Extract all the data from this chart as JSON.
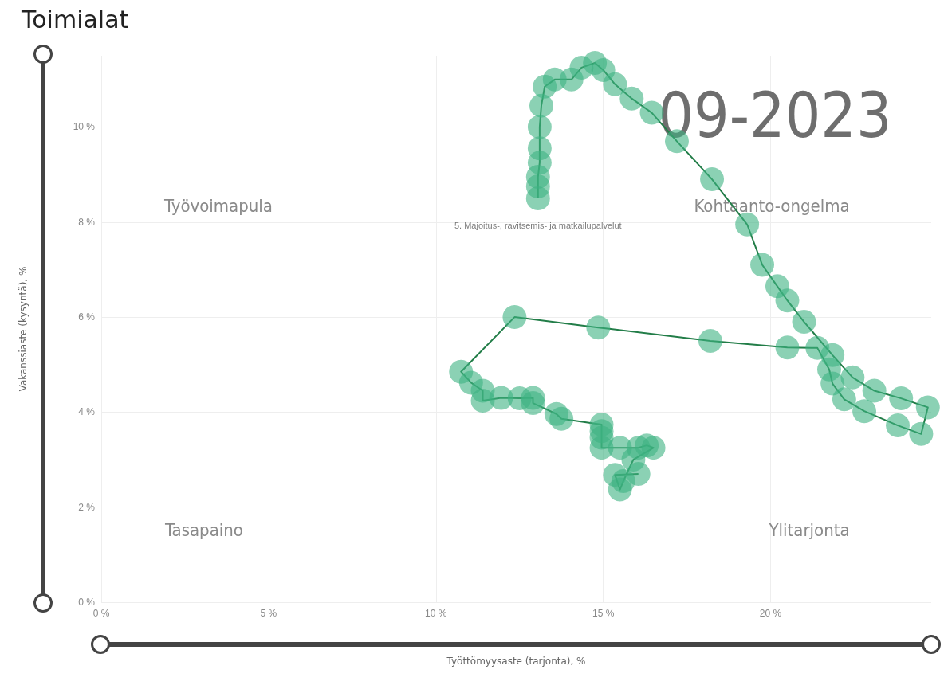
{
  "chart_data": {
    "type": "line",
    "title": "Toimialat",
    "xlabel": "Työttömyysaste (tarjonta), %",
    "ylabel": "Vakanssiaste (kysyntä), %",
    "annotations": [
      "Työvoimapula",
      "Kohtaanto-ongelma",
      "Tasapaino",
      "Ylitarjonta",
      "09-2023"
    ],
    "xlim": [
      0,
      24.8
    ],
    "ylim": [
      0,
      11.5
    ],
    "xticks": [
      {
        "value": 0,
        "label": "0 %"
      },
      {
        "value": 5,
        "label": "5 %"
      },
      {
        "value": 10,
        "label": "10 %"
      },
      {
        "value": 15,
        "label": "15 %"
      },
      {
        "value": 20,
        "label": "20 %"
      }
    ],
    "yticks": [
      {
        "value": 0,
        "label": "0 %"
      },
      {
        "value": 2,
        "label": "2 %"
      },
      {
        "value": 4,
        "label": "4 %"
      },
      {
        "value": 6,
        "label": "6 %"
      },
      {
        "value": 8,
        "label": "8 %"
      },
      {
        "value": 10,
        "label": "10 %"
      }
    ],
    "grid": true,
    "legend": false,
    "marker": "circle",
    "line_style": "solid",
    "series": [
      {
        "name": "5. Majoitus-, ravitsemis- ja matkailupalvelut",
        "color": "#3db382",
        "x": [
          16.05,
          15.35,
          15.5,
          15.6,
          15.9,
          16.5,
          16.3,
          16.05,
          15.5,
          14.95,
          14.95,
          14.95,
          14.95,
          13.75,
          13.6,
          12.9,
          12.9,
          12.5,
          11.95,
          11.4,
          11.4,
          11.05,
          10.75,
          12.35,
          14.85,
          18.2,
          20.5,
          21.4,
          21.75,
          21.85,
          22.2,
          22.8,
          23.8,
          24.5,
          24.7,
          23.9,
          23.1,
          22.45,
          21.85,
          21.0,
          20.5,
          20.2,
          19.75,
          19.3,
          18.25,
          17.2,
          16.45,
          15.85,
          15.35,
          15.0,
          14.75,
          14.35,
          14.05,
          13.55,
          13.25,
          13.15,
          13.1,
          13.1,
          13.1,
          13.05,
          13.05,
          13.05
        ],
        "values": [
          2.7,
          2.68,
          2.37,
          2.55,
          3.0,
          3.25,
          3.3,
          3.25,
          3.25,
          3.25,
          3.46,
          3.6,
          3.74,
          3.86,
          3.96,
          4.19,
          4.3,
          4.29,
          4.3,
          4.24,
          4.45,
          4.62,
          4.85,
          6.0,
          5.78,
          5.5,
          5.36,
          5.35,
          4.9,
          4.6,
          4.27,
          4.02,
          3.72,
          3.54,
          4.1,
          4.29,
          4.45,
          4.73,
          5.2,
          5.9,
          6.35,
          6.65,
          7.1,
          7.95,
          8.9,
          9.7,
          10.3,
          10.6,
          10.9,
          11.2,
          11.35,
          11.25,
          11.0,
          11.0,
          10.85,
          10.45,
          10.0,
          9.55,
          9.25,
          8.95,
          8.75,
          8.5
        ]
      }
    ]
  }
}
